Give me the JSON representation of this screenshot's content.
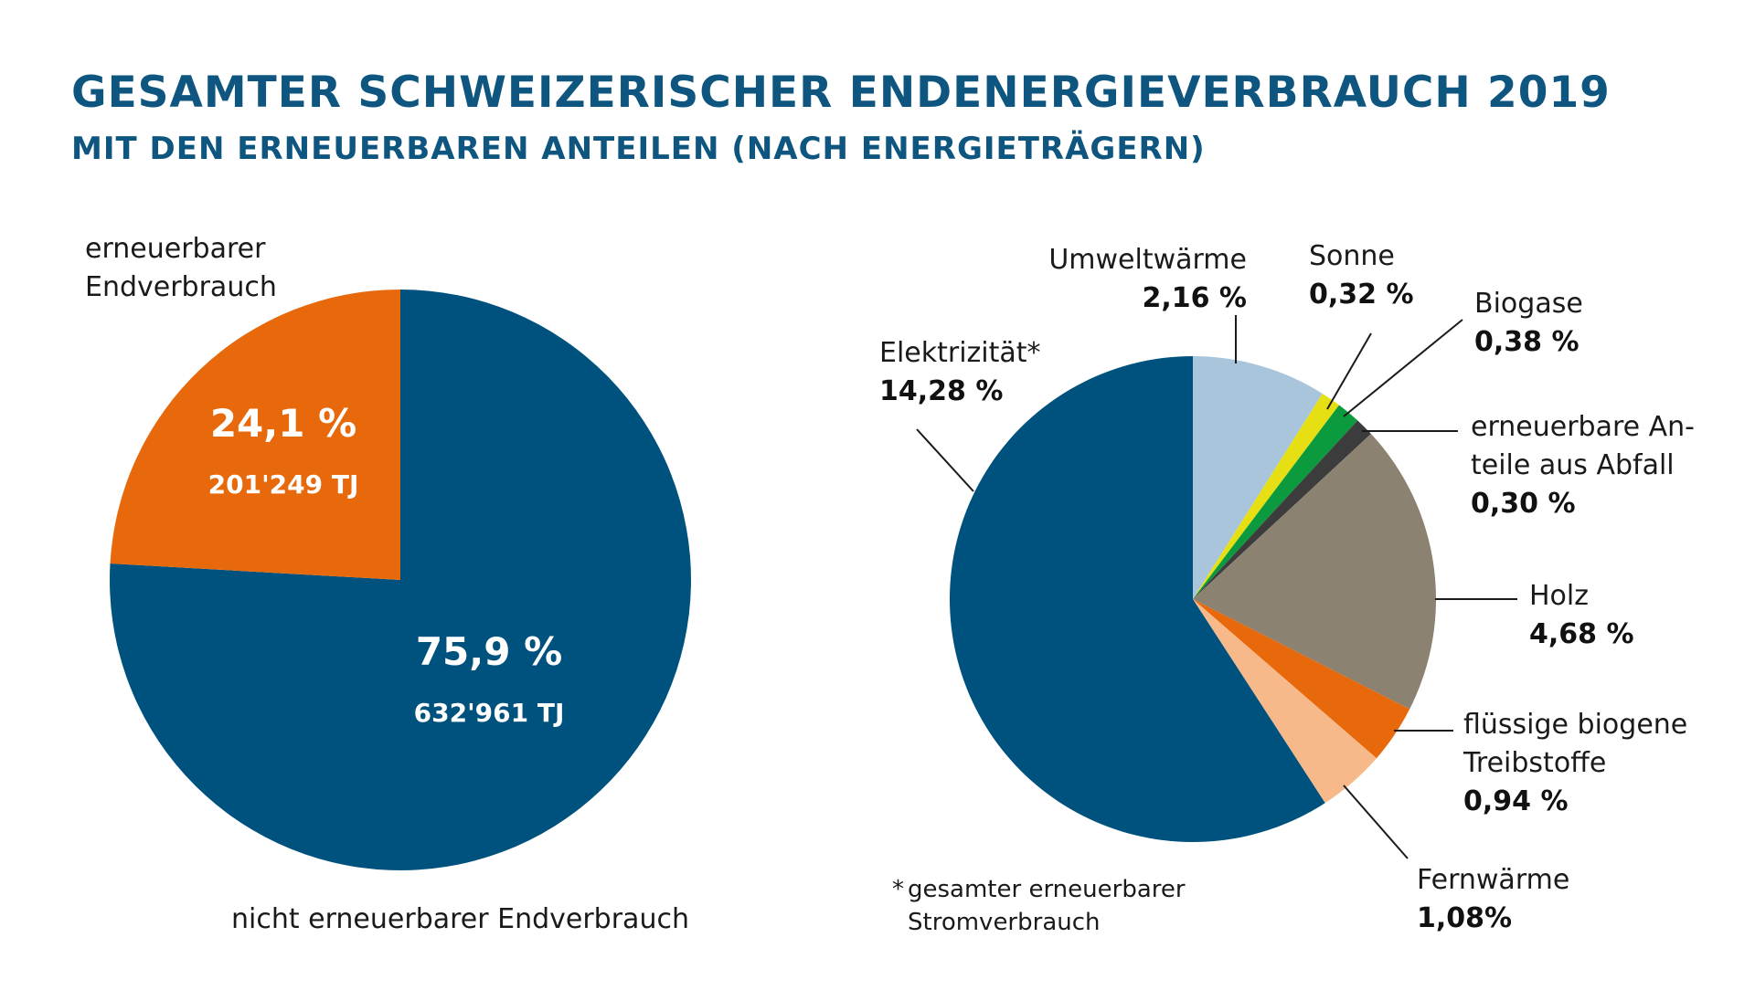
{
  "title": "GESAMTER SCHWEIZERISCHER ENDENERGIEVERBRAUCH 2019",
  "subtitle": "MIT DEN ERNEUERBAREN ANTEILEN (NACH ENERGIETRÄGERN)",
  "chart_data": [
    {
      "type": "pie",
      "slices": [
        {
          "label_lines": [
            "erneuerbarer",
            "Endverbrauch"
          ],
          "pct_label": "24,1 %",
          "value": 24.1,
          "amount_label": "201'249 TJ",
          "color": "#e8690b"
        },
        {
          "label_lines": [
            "nicht erneuerbarer Endverbrauch"
          ],
          "pct_label": "75,9 %",
          "value": 75.9,
          "amount_label": "632'961 TJ",
          "color": "#00527e"
        }
      ]
    },
    {
      "type": "pie",
      "slices": [
        {
          "label_lines": [
            "Umweltwärme"
          ],
          "pct_label": "2,16 %",
          "value": 2.16,
          "color": "#a9c5dc"
        },
        {
          "label_lines": [
            "Sonne"
          ],
          "pct_label": "0,32 %",
          "value": 0.32,
          "color": "#e5df13"
        },
        {
          "label_lines": [
            "Biogase"
          ],
          "pct_label": "0,38 %",
          "value": 0.38,
          "color": "#0b9a3d"
        },
        {
          "label_lines": [
            "erneuerbare An-",
            "teile aus Abfall"
          ],
          "pct_label": "0,30 %",
          "value": 0.3,
          "color": "#3c3c3c"
        },
        {
          "label_lines": [
            "Holz"
          ],
          "pct_label": "4,68 %",
          "value": 4.68,
          "color": "#8b8271"
        },
        {
          "label_lines": [
            "flüssige biogene",
            "Treibstoffe"
          ],
          "pct_label": "0,94 %",
          "value": 0.94,
          "color": "#e8690b"
        },
        {
          "label_lines": [
            "Fernwärme"
          ],
          "pct_label": "1,08%",
          "value": 1.08,
          "color": "#f7b98a"
        },
        {
          "label_lines": [
            "Elektrizität*"
          ],
          "pct_label": "14,28 %",
          "value": 14.28,
          "color": "#00527e"
        }
      ],
      "footnote_lines": [
        "gesamter erneuerbarer",
        "Stromverbrauch"
      ],
      "footnote_marker": "*"
    }
  ]
}
